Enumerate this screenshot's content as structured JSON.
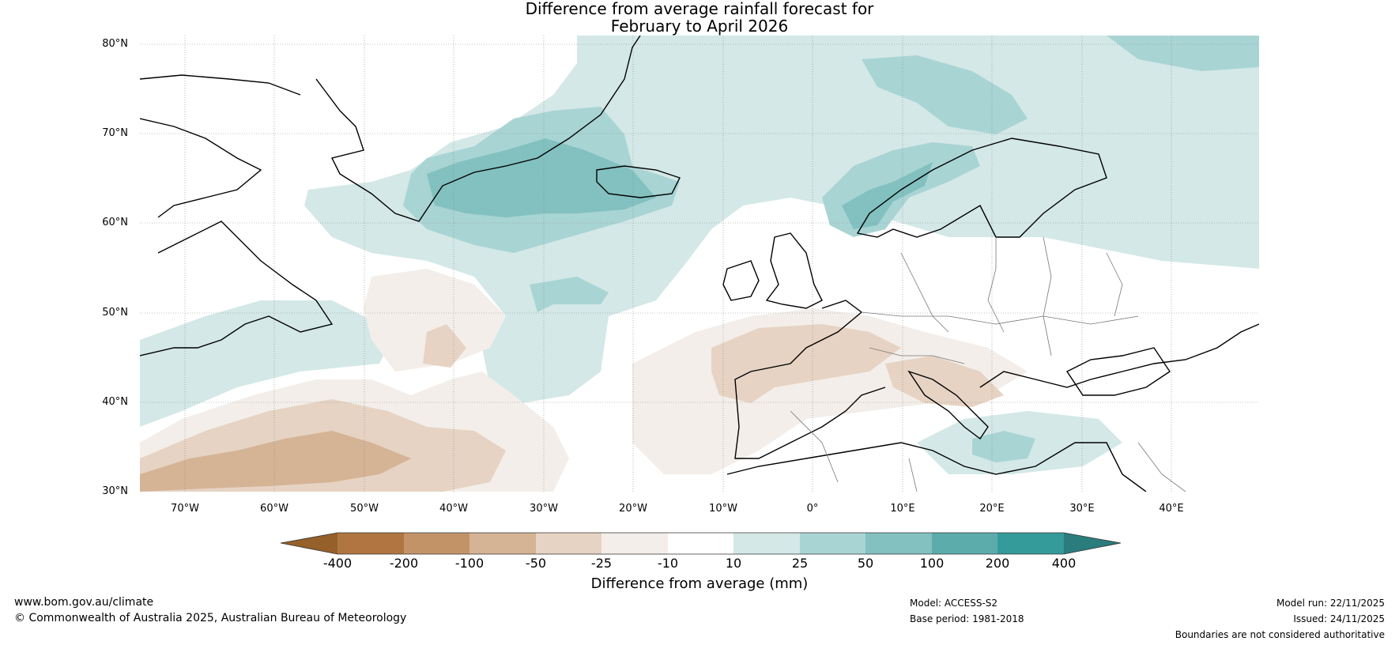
{
  "title_line1": "Difference from average rainfall forecast for",
  "title_line2": "February to April 2026",
  "lat_labels": [
    "80°N",
    "70°N",
    "60°N",
    "50°N",
    "40°N",
    "30°N"
  ],
  "lon_labels": [
    "70°W",
    "60°W",
    "50°W",
    "40°W",
    "30°W",
    "20°W",
    "10°W",
    "0°",
    "10°E",
    "20°E",
    "30°E",
    "40°E"
  ],
  "colorbar": {
    "title": "Difference from average (mm)",
    "ticks": [
      "-400",
      "-200",
      "-100",
      "-50",
      "-25",
      "-10",
      "10",
      "25",
      "50",
      "100",
      "200",
      "400"
    ],
    "colors": [
      "#95602a",
      "#b07540",
      "#c39368",
      "#d5b395",
      "#e6d3c3",
      "#f3eee9",
      "#ffffff",
      "#d3e8e7",
      "#a9d4d4",
      "#83c0c0",
      "#5cacac",
      "#359a9a",
      "#2b7c7c"
    ]
  },
  "footer": {
    "website": "www.bom.gov.au/climate",
    "copyright": "© Commonwealth of Australia 2025, Australian Bureau of Meteorology",
    "model": "Model: ACCESS-S2",
    "base_period": "Base period: 1981-2018",
    "model_run": "Model run: 22/11/2025",
    "issued": "Issued: 24/11/2025",
    "disclaimer": "Boundaries are not considered authoritative"
  }
}
